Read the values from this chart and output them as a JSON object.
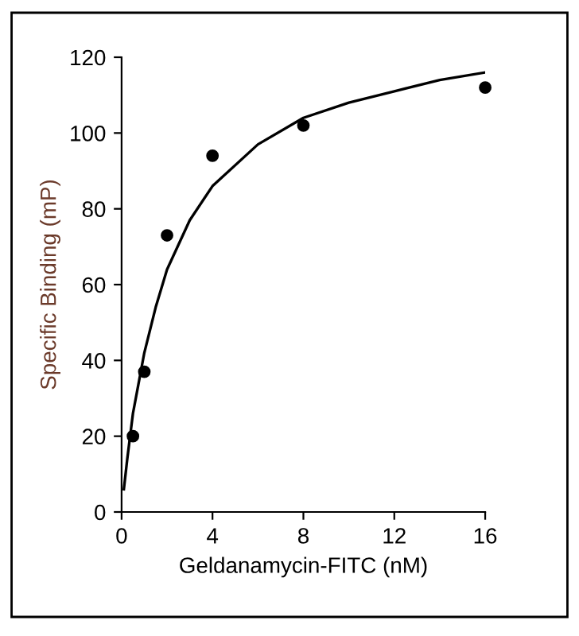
{
  "chart_data": {
    "type": "scatter",
    "xlabel": "Geldanamycin-FITC (nM)",
    "ylabel": "Specific Binding (mP)",
    "series": [
      {
        "color": "#000000",
        "marker": "circle",
        "x": [
          0.5,
          1,
          2,
          4,
          8,
          16
        ],
        "values": [
          20,
          37,
          73,
          94,
          102,
          112
        ]
      },
      {
        "type": "line",
        "color": "#000000",
        "marker": "none",
        "x": [
          0.1,
          0.25,
          0.5,
          1,
          1.5,
          2,
          3,
          4,
          6,
          8,
          10,
          12,
          14,
          16
        ],
        "values": [
          6,
          14,
          26,
          42,
          54,
          64,
          77,
          86,
          97,
          104,
          108,
          111,
          114,
          116
        ]
      }
    ],
    "xlim": [
      0,
      16
    ],
    "xticks": [
      0,
      4,
      8,
      12,
      16
    ],
    "ylim": [
      0,
      120
    ],
    "yticks": [
      0,
      20,
      40,
      60,
      80,
      100,
      120
    ],
    "grid": false,
    "legend": false
  }
}
